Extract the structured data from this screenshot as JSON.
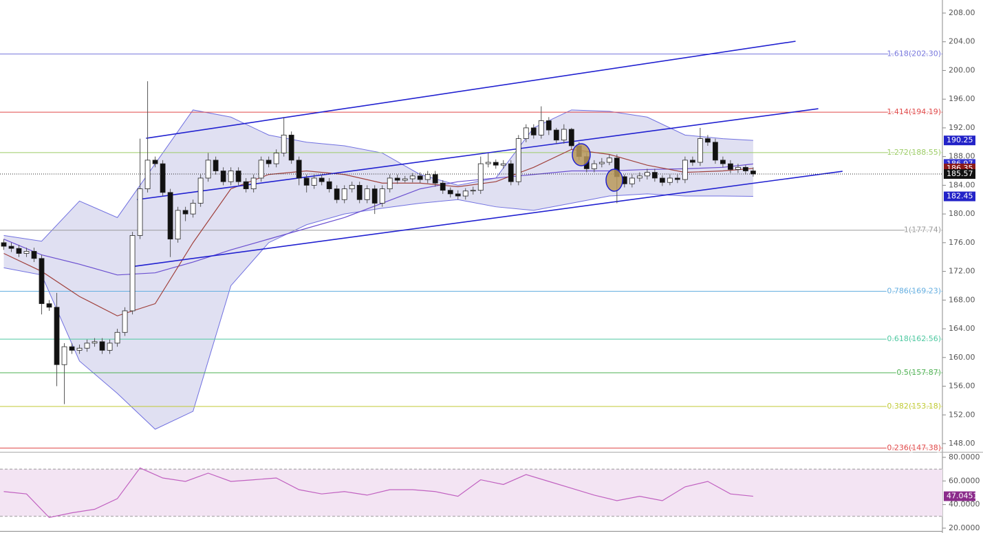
{
  "chart_data": [
    {
      "type": "candlestick",
      "xlim": [
        -0.5,
        124
      ],
      "ylim": [
        147.04,
        209.82
      ],
      "yticks": [
        {
          "value": 148,
          "label": "148.00"
        },
        {
          "value": 152,
          "label": "152.00"
        },
        {
          "value": 156,
          "label": "156.00"
        },
        {
          "value": 160,
          "label": "160.00"
        },
        {
          "value": 164,
          "label": "164.00"
        },
        {
          "value": 168,
          "label": "168.00"
        },
        {
          "value": 172,
          "label": "172.00"
        },
        {
          "value": 176,
          "label": "176.00"
        },
        {
          "value": 180,
          "label": "180.00"
        },
        {
          "value": 184,
          "label": "184.00"
        },
        {
          "value": 188,
          "label": "188.00"
        },
        {
          "value": 192,
          "label": "192.00"
        },
        {
          "value": 196,
          "label": "196.00"
        },
        {
          "value": 200,
          "label": "200.00"
        },
        {
          "value": 204,
          "label": "204.00"
        },
        {
          "value": 208,
          "label": "208.00"
        }
      ],
      "up_color": "#ffffff",
      "down_color": "#111111",
      "wick_color": "#555555",
      "last_label_color": "#111111",
      "open": [
        176,
        175.5,
        175.2,
        174.5,
        174.8,
        173.8,
        167.5,
        167,
        159,
        161.5,
        161,
        161.3,
        162,
        162.2,
        161,
        162,
        163.5,
        166.5,
        177,
        183.5,
        187.5,
        187,
        183,
        176.5,
        180.5,
        180,
        181.5,
        185,
        187.5,
        186,
        184.5,
        186,
        184.5,
        183.5,
        185,
        187.5,
        187,
        188.5,
        191,
        187.5,
        185,
        184,
        185,
        184.5,
        183.5,
        182,
        183.5,
        184,
        182,
        183.5,
        181.5,
        183.5,
        185,
        184.7,
        184.9,
        185.3,
        184.8,
        185.5,
        184.3,
        183.3,
        182.8,
        182.5,
        183.2,
        183.3,
        187,
        187.2,
        186.8,
        187,
        184.5,
        190.5,
        192,
        191,
        193,
        191.7,
        190.3,
        191.8,
        189.5,
        188,
        186.3,
        187,
        187.2,
        187.8,
        185.2,
        184.2,
        185,
        185.3,
        185.8,
        185,
        184.4,
        185,
        184.8,
        187.5,
        187.2,
        190.5,
        190,
        187.5,
        187,
        186.2,
        186.5,
        186
      ],
      "high": [
        176.5,
        176,
        175.7,
        175.3,
        175.3,
        174.3,
        168,
        169,
        162,
        162,
        161.8,
        162.5,
        162.7,
        162.7,
        162.5,
        164,
        167,
        177.5,
        190.5,
        198.5,
        188,
        187.5,
        183.5,
        181,
        181,
        182,
        185.5,
        188.5,
        188,
        186.5,
        186.5,
        186.5,
        185,
        185.5,
        188,
        188,
        189,
        193.5,
        191.5,
        188,
        185.5,
        185.5,
        185.5,
        185,
        184,
        184,
        184.5,
        184.5,
        184,
        184,
        184,
        185.5,
        185.5,
        185.3,
        185.7,
        185.8,
        186,
        186,
        184.7,
        183.7,
        183.3,
        183.6,
        183.8,
        188,
        188.5,
        187.6,
        187.5,
        187.5,
        191,
        192.5,
        192.5,
        195,
        193.5,
        192,
        192.5,
        192,
        190,
        188.5,
        187.5,
        187.8,
        188.3,
        188.3,
        185.5,
        185.5,
        185.8,
        186.3,
        186.3,
        185.4,
        185.5,
        185.5,
        188,
        188,
        192,
        191,
        190.5,
        188,
        187.5,
        187,
        186.8,
        186.5
      ],
      "low": [
        175,
        174.7,
        174,
        174,
        173.3,
        166,
        166.5,
        156,
        153.5,
        160.5,
        160.5,
        160.8,
        161.5,
        160.5,
        160.5,
        161.5,
        163,
        166,
        176.5,
        183,
        186.5,
        182.5,
        174,
        176,
        179,
        179.5,
        181,
        184.5,
        185.5,
        184,
        184,
        184,
        183,
        183,
        184.5,
        186.5,
        186.5,
        188,
        187,
        184,
        183,
        183.5,
        184,
        183,
        181.5,
        181.5,
        183,
        181.5,
        181.5,
        180,
        181,
        183,
        184.2,
        184.4,
        184.4,
        184.3,
        184.3,
        183.8,
        182.8,
        182.3,
        182,
        182,
        182.7,
        182.8,
        186.5,
        186.3,
        186.3,
        184,
        184,
        190,
        190.5,
        190.5,
        191,
        189.8,
        189.8,
        189,
        187.5,
        185.8,
        185.8,
        186.5,
        186.8,
        181.5,
        183.7,
        183.7,
        184.5,
        184.8,
        184.5,
        183.9,
        184,
        184.3,
        184.3,
        186.7,
        186.7,
        189.5,
        187,
        186.5,
        185.7,
        185.7,
        185.5,
        185.2
      ],
      "close": [
        175.5,
        175.2,
        174.5,
        174.8,
        173.8,
        167.5,
        167,
        159,
        161.5,
        161,
        161.3,
        162,
        162.2,
        161,
        162,
        163.5,
        166.5,
        177,
        183.5,
        187.5,
        187,
        183,
        176.5,
        180.5,
        180,
        181.5,
        185,
        187.5,
        186,
        184.5,
        186,
        184.5,
        183.5,
        185,
        187.5,
        187,
        188.5,
        191,
        187.5,
        185,
        184,
        185,
        184.5,
        183.5,
        182,
        183.5,
        184,
        182,
        183.5,
        181.5,
        183.5,
        185,
        184.7,
        184.9,
        185.3,
        184.8,
        185.5,
        184.3,
        183.3,
        182.8,
        182.5,
        183.2,
        183.3,
        187,
        187.2,
        186.8,
        187,
        184.5,
        190.5,
        192,
        191,
        193,
        191.7,
        190.3,
        191.8,
        189.5,
        188,
        186.3,
        187,
        187.2,
        187.8,
        185.2,
        184.2,
        185,
        185.3,
        185.8,
        185,
        184.4,
        185,
        184.8,
        187.5,
        187.2,
        190.5,
        190,
        187.5,
        187,
        186.2,
        186.5,
        186,
        185.57
      ],
      "bands": {
        "color": "#6f6fe0",
        "fill": "#e0e0f2",
        "label_color": "#2323c8",
        "x": [
          0,
          5,
          10,
          15,
          20,
          25,
          30,
          35,
          40,
          45,
          50,
          55,
          60,
          65,
          70,
          75,
          80,
          85,
          90,
          95,
          99
        ],
        "upper": [
          177,
          176.2,
          181.8,
          179.5,
          187,
          194.5,
          193.5,
          191,
          190,
          189.5,
          188.5,
          185.5,
          184,
          185,
          192,
          194.5,
          194.3,
          193.5,
          191,
          190.5,
          190.25
        ],
        "lower": [
          172.5,
          171.5,
          159.5,
          155,
          150,
          152.5,
          170,
          176,
          178.5,
          180,
          180.8,
          181.5,
          182,
          181,
          180.5,
          181.5,
          182.5,
          182.8,
          182.5,
          182.5,
          182.45
        ]
      },
      "series": [
        {
          "color": "#6a4fd0",
          "label_color": "#2f2fd0",
          "x": [
            0,
            5,
            10,
            15,
            20,
            25,
            30,
            35,
            40,
            45,
            50,
            55,
            60,
            65,
            70,
            75,
            80,
            85,
            90,
            95,
            99
          ],
          "values": [
            176.5,
            174.3,
            173,
            171.5,
            171.8,
            173.3,
            175,
            176.5,
            178,
            179.5,
            181.5,
            183.5,
            184.5,
            185,
            185.5,
            186,
            186,
            186.2,
            186.3,
            186.5,
            186.97
          ]
        },
        {
          "color": "#a0413c",
          "label_color": "#8b1a1a",
          "x": [
            0,
            5,
            10,
            15,
            20,
            25,
            30,
            35,
            40,
            45,
            50,
            55,
            60,
            65,
            70,
            75,
            80,
            85,
            90,
            95,
            99
          ],
          "values": [
            174.5,
            172,
            168.5,
            165.8,
            167.5,
            176,
            183.5,
            185.5,
            186,
            185.5,
            184.3,
            184.3,
            183.8,
            184.5,
            186.5,
            189,
            188.3,
            186.8,
            185.8,
            186,
            186.35
          ]
        }
      ],
      "trendline_color": "#2020d0",
      "trendlines": [
        {
          "x": [
            18.8,
            104.6
          ],
          "y": [
            190.55,
            204.07
          ]
        },
        {
          "x": [
            17.6,
            107.6
          ],
          "y": [
            182.0,
            194.67
          ]
        },
        {
          "x": [
            17.2,
            110.8
          ],
          "y": [
            172.7,
            185.95
          ]
        }
      ],
      "fib_levels": [
        {
          "value": 202.3,
          "label": "1.618(202.30)",
          "color": "#7777dd"
        },
        {
          "value": 194.19,
          "label": "1.414(194.19)",
          "color": "#e04848"
        },
        {
          "value": 188.55,
          "label": "1.272(188.55)",
          "color": "#9ccc65"
        },
        {
          "value": 177.74,
          "label": "1(177.74)",
          "color": "#999999"
        },
        {
          "value": 169.23,
          "label": "0.786(169.23)",
          "color": "#64aee0"
        },
        {
          "value": 162.56,
          "label": "0.618(162.56)",
          "color": "#4dc8a0"
        },
        {
          "value": 157.87,
          "label": "0.5(157.87)",
          "color": "#4caf50"
        },
        {
          "value": 153.18,
          "label": "0.382(153.18)",
          "color": "#c0ca33"
        },
        {
          "value": 147.38,
          "label": "0.236(147.38)",
          "color": "#e04848"
        }
      ]
    },
    {
      "type": "line",
      "xlim": [
        -0.5,
        124
      ],
      "ylim": [
        15.9,
        82.9
      ],
      "yticks": [
        {
          "value": 20,
          "label": "20.0000"
        },
        {
          "value": 40,
          "label": "40.0000"
        },
        {
          "value": 60,
          "label": "60.0000"
        },
        {
          "value": 80,
          "label": "80.0000"
        }
      ],
      "band": [
        30,
        70
      ],
      "band_color": "#f3e4f3",
      "color": "#c060c0",
      "label_color": "#8b2b8b",
      "x": [
        0,
        3,
        6,
        9,
        12,
        15,
        18,
        21,
        24,
        27,
        30,
        33,
        36,
        39,
        42,
        45,
        48,
        51,
        54,
        57,
        60,
        63,
        66,
        69,
        72,
        75,
        78,
        81,
        84,
        87,
        90,
        93,
        96,
        99
      ],
      "values": [
        51,
        49,
        29,
        33,
        36,
        45,
        71,
        62.5,
        59.6,
        66.6,
        59.6,
        61,
        62.5,
        52.6,
        49,
        51,
        48,
        52.6,
        52.6,
        51,
        47,
        61,
        57,
        65.4,
        59.6,
        53.8,
        48,
        43.3,
        47,
        43.3,
        55,
        59.6,
        49,
        47.0451
      ]
    }
  ]
}
